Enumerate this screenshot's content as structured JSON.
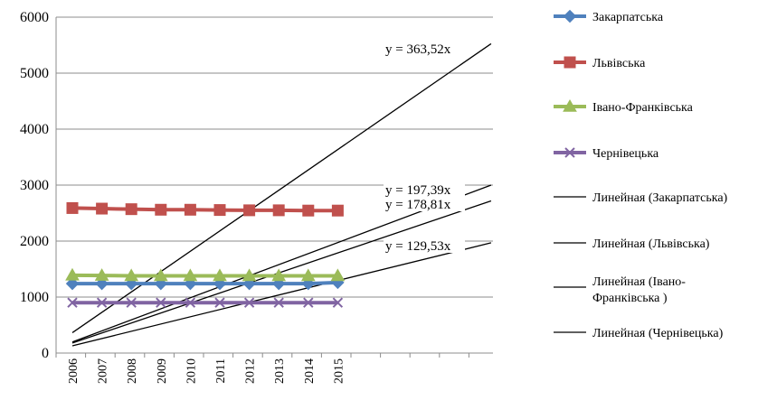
{
  "chart_data": {
    "type": "line",
    "categories": [
      "2006",
      "2007",
      "2008",
      "2009",
      "2010",
      "2011",
      "2012",
      "2013",
      "2014",
      "2015"
    ],
    "ylim": [
      0,
      6000
    ],
    "y_ticks": [
      "0",
      "1000",
      "2000",
      "3000",
      "4000",
      "5000",
      "6000"
    ],
    "grid": "horizontal",
    "legend_position": "right",
    "series": [
      {
        "name": "Закарпатська",
        "color": "#4F81BD",
        "marker": "diamond",
        "values": [
          1240,
          1240,
          1240,
          1240,
          1240,
          1240,
          1240,
          1240,
          1240,
          1260
        ]
      },
      {
        "name": "Львівська",
        "color": "#C0504D",
        "marker": "square",
        "values": [
          2590,
          2580,
          2570,
          2560,
          2560,
          2555,
          2550,
          2550,
          2545,
          2545
        ]
      },
      {
        "name": "Івано-Франківська",
        "color": "#9BBB59",
        "marker": "triangle",
        "values": [
          1390,
          1385,
          1380,
          1380,
          1380,
          1380,
          1380,
          1380,
          1380,
          1380
        ]
      },
      {
        "name": "Чернівецька",
        "color": "#8064A2",
        "marker": "x",
        "values": [
          900,
          900,
          900,
          900,
          900,
          900,
          900,
          900,
          900,
          900
        ]
      }
    ],
    "trendlines": [
      {
        "name": "Линейная (Закарпатська)",
        "color": "#000000",
        "slope": 129.53,
        "label": "y = 129,53x"
      },
      {
        "name": "Линейная (Львівська)",
        "color": "#000000",
        "slope": 363.52,
        "label": "y = 363,52x"
      },
      {
        "name": "Линейная (Івано-Франківська )",
        "color": "#000000",
        "slope": 178.81,
        "label": "y = 178,81x"
      },
      {
        "name": "Линейная (Чернівецька)",
        "color": "#000000",
        "slope": 197.39,
        "label": "y = 197,39x"
      }
    ]
  }
}
